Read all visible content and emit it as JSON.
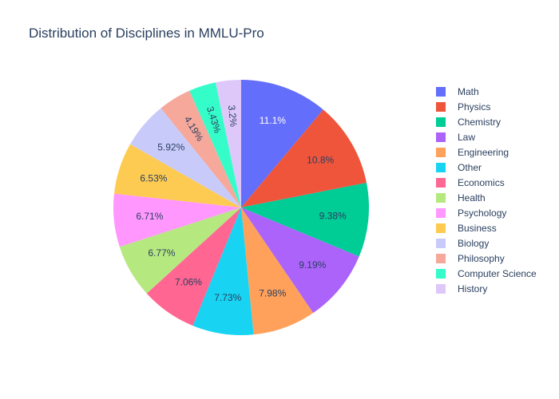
{
  "chart_data": {
    "type": "pie",
    "title": "Distribution of Disciplines in MMLU-Pro",
    "legend_position": "right",
    "slices": [
      {
        "label": "Math",
        "value": 11.1,
        "display": "11.1%",
        "color": "#636efa",
        "text_color": "#ffffff"
      },
      {
        "label": "Physics",
        "value": 10.8,
        "display": "10.8%",
        "color": "#ef553b",
        "text_color": "#2a3f5f"
      },
      {
        "label": "Chemistry",
        "value": 9.38,
        "display": "9.38%",
        "color": "#00cc96",
        "text_color": "#2a3f5f"
      },
      {
        "label": "Law",
        "value": 9.19,
        "display": "9.19%",
        "color": "#ab63fa",
        "text_color": "#2a3f5f"
      },
      {
        "label": "Engineering",
        "value": 7.98,
        "display": "7.98%",
        "color": "#ffa15a",
        "text_color": "#2a3f5f"
      },
      {
        "label": "Other",
        "value": 7.73,
        "display": "7.73%",
        "color": "#19d3f3",
        "text_color": "#2a3f5f"
      },
      {
        "label": "Economics",
        "value": 7.06,
        "display": "7.06%",
        "color": "#ff6692",
        "text_color": "#2a3f5f"
      },
      {
        "label": "Health",
        "value": 6.77,
        "display": "6.77%",
        "color": "#b6e880",
        "text_color": "#2a3f5f"
      },
      {
        "label": "Psychology",
        "value": 6.71,
        "display": "6.71%",
        "color": "#ff97ff",
        "text_color": "#2a3f5f"
      },
      {
        "label": "Business",
        "value": 6.53,
        "display": "6.53%",
        "color": "#fecb52",
        "text_color": "#2a3f5f"
      },
      {
        "label": "Biology",
        "value": 5.92,
        "display": "5.92%",
        "color": "#c8cbfa",
        "text_color": "#2a3f5f"
      },
      {
        "label": "Philosophy",
        "value": 4.19,
        "display": "4.19%",
        "color": "#f6a89b",
        "text_color": "#2a3f5f"
      },
      {
        "label": "Computer Science",
        "value": 3.43,
        "display": "3.43%",
        "color": "#35fdc9",
        "text_color": "#2a3f5f"
      },
      {
        "label": "History",
        "value": 3.2,
        "display": "3.2%",
        "color": "#dec8fa",
        "text_color": "#2a3f5f"
      }
    ]
  }
}
